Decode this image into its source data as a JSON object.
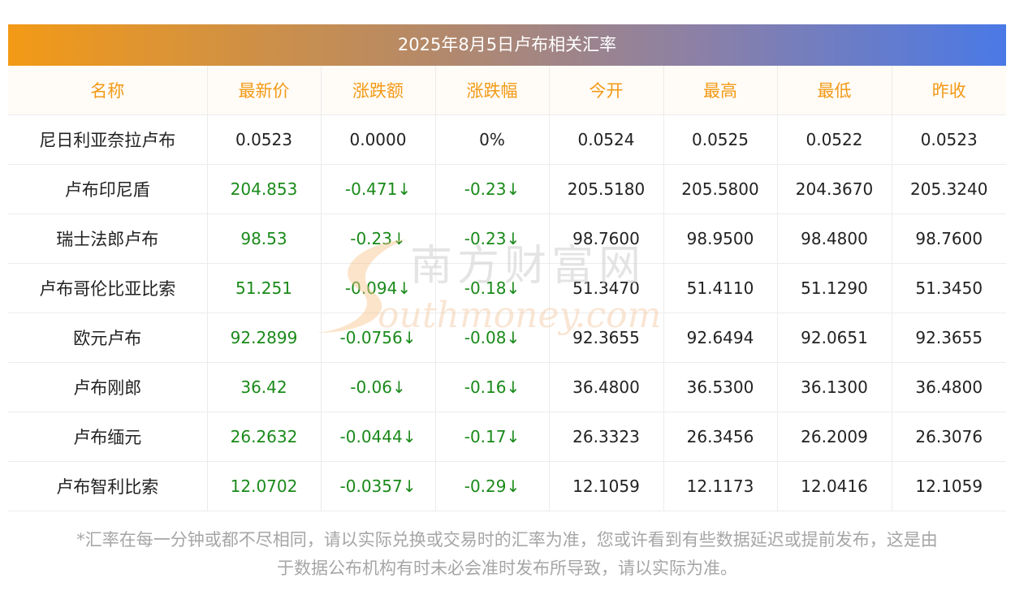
{
  "header": {
    "title": "2025年8月5日卢布相关汇率"
  },
  "table": {
    "columns": [
      "名称",
      "最新价",
      "涨跌额",
      "涨跌幅",
      "今开",
      "最高",
      "最低",
      "昨收"
    ],
    "rows": [
      {
        "cells": [
          "尼日利亚奈拉卢布",
          "0.0523",
          "0.0000",
          "0%",
          "0.0524",
          "0.0525",
          "0.0522",
          "0.0523"
        ],
        "down": false
      },
      {
        "cells": [
          "卢布印尼盾",
          "204.853",
          "-0.471↓",
          "-0.23↓",
          "205.5180",
          "205.5800",
          "204.3670",
          "205.3240"
        ],
        "down": true
      },
      {
        "cells": [
          "瑞士法郎卢布",
          "98.53",
          "-0.23↓",
          "-0.23↓",
          "98.7600",
          "98.9500",
          "98.4800",
          "98.7600"
        ],
        "down": true
      },
      {
        "cells": [
          "卢布哥伦比亚比索",
          "51.251",
          "-0.094↓",
          "-0.18↓",
          "51.3470",
          "51.4110",
          "51.1290",
          "51.3450"
        ],
        "down": true
      },
      {
        "cells": [
          "欧元卢布",
          "92.2899",
          "-0.0756↓",
          "-0.08↓",
          "92.3655",
          "92.6494",
          "92.0651",
          "92.3655"
        ],
        "down": true
      },
      {
        "cells": [
          "卢布刚郎",
          "36.42",
          "-0.06↓",
          "-0.16↓",
          "36.4800",
          "36.5300",
          "36.1300",
          "36.4800"
        ],
        "down": true
      },
      {
        "cells": [
          "卢布缅元",
          "26.2632",
          "-0.0444↓",
          "-0.17↓",
          "26.3323",
          "26.3456",
          "26.2009",
          "26.3076"
        ],
        "down": true
      },
      {
        "cells": [
          "卢布智利比索",
          "12.0702",
          "-0.0357↓",
          "-0.29↓",
          "12.1059",
          "12.1173",
          "12.0416",
          "12.1059"
        ],
        "down": true
      }
    ]
  },
  "watermark": {
    "cn": "南方财富网",
    "en": "outhmoney.com"
  },
  "footer": {
    "line1": "*汇率在每一分钟或都不尽相同，请以实际兑换或交易时的汇率为准，您或许看到有些数据延迟或提前发布，这是由",
    "line2": "于数据公布机构有时未必会准时发布所导致，请以实际为准。"
  },
  "colors": {
    "accent": "#f39a16",
    "down": "#1a8a1a",
    "gradient_start": "#f39a16",
    "gradient_end": "#4a79e6"
  }
}
